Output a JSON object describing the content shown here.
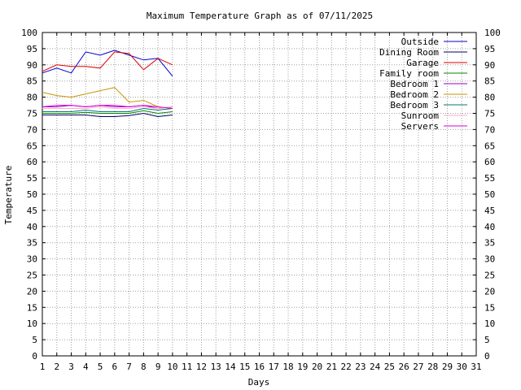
{
  "chart_data": {
    "type": "line",
    "title": "Maximum Temperature Graph as of 07/11/2025",
    "xlabel": "Days",
    "ylabel": "Temperature",
    "xlim": [
      1,
      31
    ],
    "ylim": [
      0,
      100
    ],
    "x_ticks": [
      1,
      2,
      3,
      4,
      5,
      6,
      7,
      8,
      9,
      10,
      11,
      12,
      13,
      14,
      15,
      16,
      17,
      18,
      19,
      20,
      21,
      22,
      23,
      24,
      25,
      26,
      27,
      28,
      29,
      30,
      31
    ],
    "y_ticks": [
      0,
      5,
      10,
      15,
      20,
      25,
      30,
      35,
      40,
      45,
      50,
      55,
      60,
      65,
      70,
      75,
      80,
      85,
      90,
      95,
      100
    ],
    "grid": true,
    "grid_style": "dotted",
    "y_axis_mirrored_right": true,
    "legend_position": "top-right",
    "x": [
      1,
      2,
      3,
      4,
      5,
      6,
      7,
      8,
      9,
      10
    ],
    "series": [
      {
        "name": "Outside",
        "color": "#0000cc",
        "values": [
          87.5,
          89,
          87.5,
          94,
          93,
          94.5,
          93,
          91.5,
          92,
          86.5
        ]
      },
      {
        "name": "Dining Room",
        "color": "#000066",
        "values": [
          74.5,
          74.5,
          74.5,
          74.5,
          74,
          74,
          74.3,
          75,
          74,
          74.5
        ]
      },
      {
        "name": "Garage",
        "color": "#dd0000",
        "values": [
          88,
          90,
          89.5,
          89.5,
          89,
          94,
          93.5,
          88.5,
          92,
          90
        ]
      },
      {
        "name": "Family room",
        "color": "#008800",
        "values": [
          75,
          75,
          75,
          75.3,
          75,
          75,
          75,
          75.8,
          75,
          75.5
        ]
      },
      {
        "name": "Bedroom 1",
        "color": "#9900cc",
        "values": [
          77,
          77,
          77.5,
          77,
          77.5,
          77,
          77,
          77.5,
          76.5,
          77
        ]
      },
      {
        "name": "Bedroom 2",
        "color": "#c89600",
        "values": [
          81.5,
          80.5,
          80,
          81,
          82,
          83,
          78.5,
          79,
          77,
          76.5
        ]
      },
      {
        "name": "Bedroom 3",
        "color": "#007777",
        "values": [
          75.5,
          75.5,
          75.5,
          76,
          75.5,
          75.5,
          75.5,
          76.5,
          76,
          76.5
        ]
      },
      {
        "name": "Sunroom",
        "color": "#ffaacc",
        "values": [
          76.5,
          76.5,
          76.5,
          76.5,
          77,
          76.5,
          76.5,
          77,
          76.5,
          77
        ]
      },
      {
        "name": "Servers",
        "color": "#dd00dd",
        "values": [
          77,
          77.5,
          77.5,
          77,
          77.5,
          77.5,
          77,
          77.5,
          77,
          76.5
        ]
      }
    ]
  }
}
